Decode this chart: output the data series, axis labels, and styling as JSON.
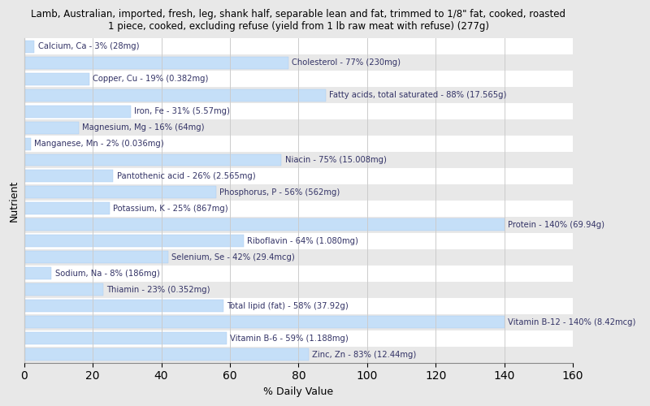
{
  "title": "Lamb, Australian, imported, fresh, leg, shank half, separable lean and fat, trimmed to 1/8\" fat, cooked, roasted\n1 piece, cooked, excluding refuse (yield from 1 lb raw meat with refuse) (277g)",
  "xlabel": "% Daily Value",
  "ylabel": "Nutrient",
  "xlim": [
    0,
    160
  ],
  "xticks": [
    0,
    20,
    40,
    60,
    80,
    100,
    120,
    140,
    160
  ],
  "bar_color": "#c5dff8",
  "bar_edge_color": "#a8c8f0",
  "background_color": "#e8e8e8",
  "plot_background": "#e8e8e8",
  "text_color": "#333366",
  "nutrients": [
    {
      "label": "Calcium, Ca - 3% (28mg)",
      "value": 3
    },
    {
      "label": "Cholesterol - 77% (230mg)",
      "value": 77
    },
    {
      "label": "Copper, Cu - 19% (0.382mg)",
      "value": 19
    },
    {
      "label": "Fatty acids, total saturated - 88% (17.565g)",
      "value": 88
    },
    {
      "label": "Iron, Fe - 31% (5.57mg)",
      "value": 31
    },
    {
      "label": "Magnesium, Mg - 16% (64mg)",
      "value": 16
    },
    {
      "label": "Manganese, Mn - 2% (0.036mg)",
      "value": 2
    },
    {
      "label": "Niacin - 75% (15.008mg)",
      "value": 75
    },
    {
      "label": "Pantothenic acid - 26% (2.565mg)",
      "value": 26
    },
    {
      "label": "Phosphorus, P - 56% (562mg)",
      "value": 56
    },
    {
      "label": "Potassium, K - 25% (867mg)",
      "value": 25
    },
    {
      "label": "Protein - 140% (69.94g)",
      "value": 140
    },
    {
      "label": "Riboflavin - 64% (1.080mg)",
      "value": 64
    },
    {
      "label": "Selenium, Se - 42% (29.4mcg)",
      "value": 42
    },
    {
      "label": "Sodium, Na - 8% (186mg)",
      "value": 8
    },
    {
      "label": "Thiamin - 23% (0.352mg)",
      "value": 23
    },
    {
      "label": "Total lipid (fat) - 58% (37.92g)",
      "value": 58
    },
    {
      "label": "Vitamin B-12 - 140% (8.42mcg)",
      "value": 140
    },
    {
      "label": "Vitamin B-6 - 59% (1.188mg)",
      "value": 59
    },
    {
      "label": "Zinc, Zn - 83% (12.44mg)",
      "value": 83
    }
  ]
}
